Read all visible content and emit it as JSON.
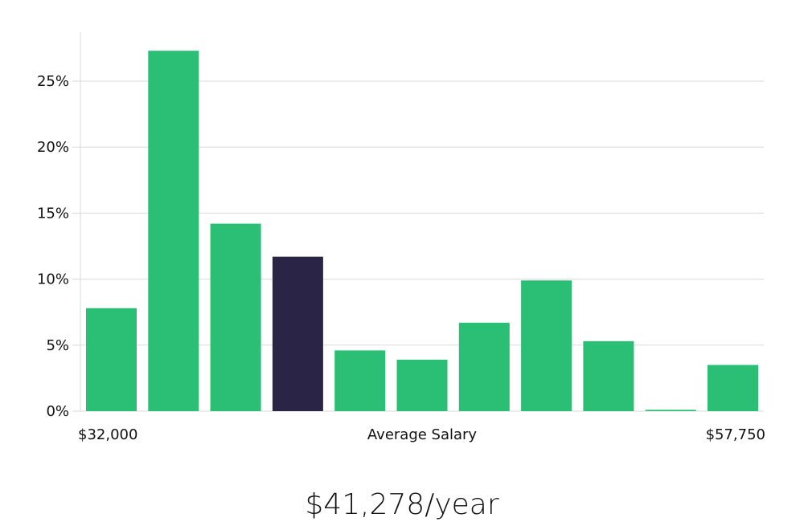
{
  "chart_data": {
    "type": "bar",
    "xlabel": "Average Salary",
    "x_start_label": "$32,000",
    "x_end_label": "$57,750",
    "y_ticks": [
      "0%",
      "5%",
      "10%",
      "15%",
      "20%",
      "25%"
    ],
    "ylim": [
      0,
      28
    ],
    "values": [
      7.8,
      27.3,
      14.2,
      11.7,
      4.6,
      3.9,
      6.7,
      9.9,
      5.3,
      0.1,
      3.5
    ],
    "highlight_index": 3,
    "grid": true,
    "colors": {
      "bar": "#2bbf76",
      "highlight": "#2a2546",
      "grid": "#d9d9d9"
    }
  },
  "salary_label": "$41,278/year"
}
